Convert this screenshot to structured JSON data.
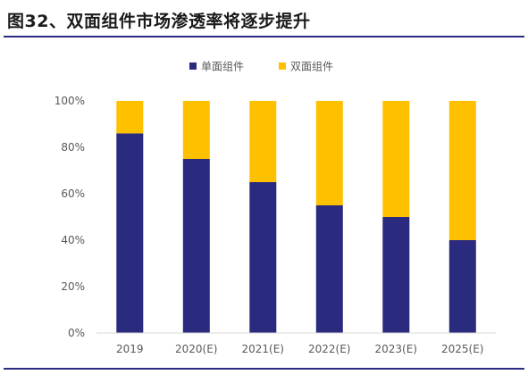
{
  "figure": {
    "title": "图32、双面组件市场渗透率将逐步提升"
  },
  "chart_data": {
    "type": "bar",
    "stacked": true,
    "categories": [
      "2019",
      "2020(E)",
      "2021(E)",
      "2022(E)",
      "2023(E)",
      "2025(E)"
    ],
    "series": [
      {
        "name": "单面组件",
        "color": "#2a2a7e",
        "values": [
          86,
          75,
          65,
          55,
          50,
          40
        ]
      },
      {
        "name": "双面组件",
        "color": "#ffc000",
        "values": [
          14,
          25,
          35,
          45,
          50,
          60
        ]
      }
    ],
    "yticks": [
      "0%",
      "20%",
      "40%",
      "60%",
      "80%",
      "100%"
    ],
    "ylim": [
      0,
      100
    ],
    "legend_position": "top-center",
    "grid": false
  }
}
